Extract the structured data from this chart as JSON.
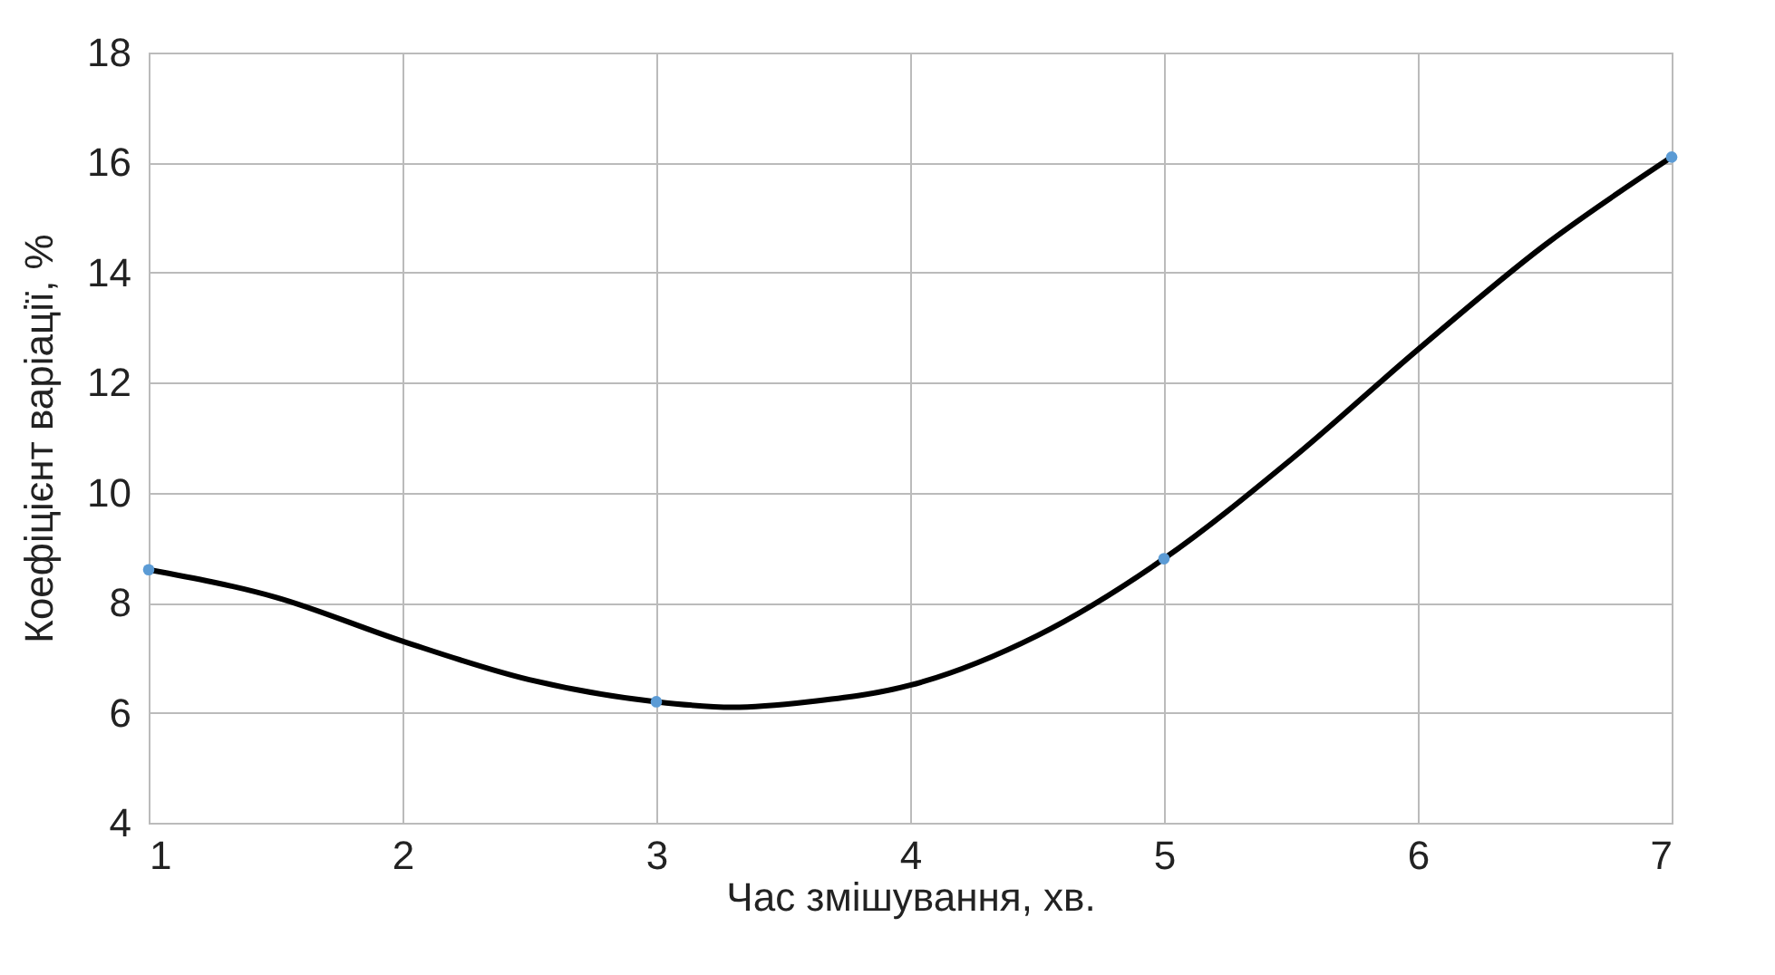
{
  "chart_data": {
    "type": "line",
    "xlabel": "Час змішування, хв.",
    "ylabel": "Коефіцієнт варіації, %",
    "series": [
      {
        "color": "#000000",
        "marker": "none",
        "x": [
          1,
          1.5,
          2,
          2.5,
          3,
          3.3,
          3.6,
          4,
          4.5,
          5,
          5.5,
          6,
          6.5,
          7
        ],
        "values": [
          8.6,
          8.1,
          7.3,
          6.6,
          6.2,
          6.1,
          6.2,
          6.5,
          7.4,
          8.8,
          10.6,
          12.6,
          14.5,
          16.1
        ]
      },
      {
        "type": "scatter",
        "marker": "circle",
        "color": "#5b9bd5",
        "x": [
          1,
          3,
          5,
          7
        ],
        "values": [
          8.6,
          6.2,
          8.8,
          16.1
        ]
      }
    ],
    "xlim": [
      1,
      7
    ],
    "xticks": [
      1,
      2,
      3,
      4,
      5,
      6,
      7
    ],
    "ylim": [
      4,
      18
    ],
    "yticks": [
      4,
      6,
      8,
      10,
      12,
      14,
      16,
      18
    ],
    "grid": true,
    "line_style": "solid"
  }
}
